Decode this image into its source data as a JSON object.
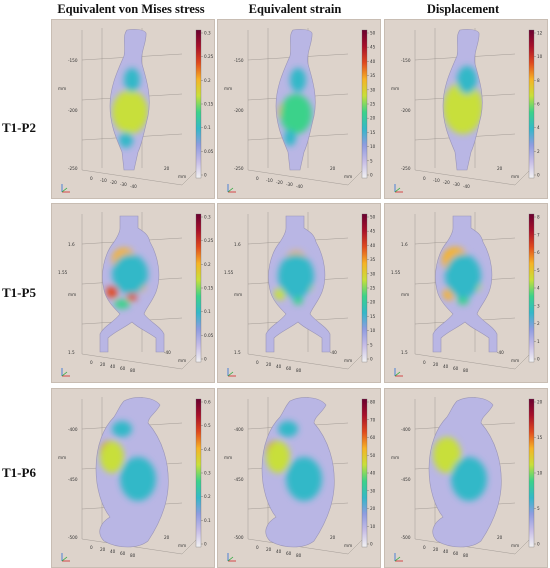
{
  "columns": [
    {
      "title": "Equivalent von Mises stress"
    },
    {
      "title": "Equivalent strain"
    },
    {
      "title": "Displacement"
    }
  ],
  "rows": [
    {
      "label": "T1-P2",
      "shape": "p2",
      "axis_ticks": [
        "-150",
        "-200",
        "mm",
        "-250",
        "0",
        "-10",
        "-20",
        "-30",
        "-40",
        "20",
        "mm"
      ],
      "colorbars": [
        {
          "ticks": [
            "0.3",
            "0.25",
            "0.2",
            "0.15",
            "0.1",
            "0.05",
            "0"
          ]
        },
        {
          "ticks": [
            "50",
            "45",
            "40",
            "35",
            "30",
            "25",
            "20",
            "15",
            "10",
            "5",
            "0"
          ]
        },
        {
          "ticks": [
            "12",
            "10",
            "8",
            "6",
            "4",
            "2",
            "0"
          ]
        }
      ]
    },
    {
      "label": "T1-P5",
      "shape": "p5",
      "axis_ticks": [
        "1.6",
        "mm",
        "1.55",
        "1.5",
        "0",
        "20",
        "40",
        "60",
        "80",
        "-40",
        "mm"
      ],
      "colorbars": [
        {
          "ticks": [
            "0.3",
            "0.25",
            "0.2",
            "0.15",
            "0.1",
            "0.05",
            "0"
          ]
        },
        {
          "ticks": [
            "50",
            "45",
            "40",
            "35",
            "30",
            "25",
            "20",
            "15",
            "10",
            "5",
            "0"
          ]
        },
        {
          "ticks": [
            "8",
            "7",
            "6",
            "5",
            "4",
            "3",
            "2",
            "1",
            "0"
          ]
        }
      ]
    },
    {
      "label": "T1-P6",
      "shape": "p6",
      "axis_ticks": [
        "-400",
        "-450",
        "mm",
        "-500",
        "0",
        "20",
        "40",
        "60",
        "80",
        "20",
        "mm"
      ],
      "colorbars": [
        {
          "ticks": [
            "0.6",
            "0.5",
            "0.4",
            "0.3",
            "0.2",
            "0.1",
            "0"
          ]
        },
        {
          "ticks": [
            "80",
            "70",
            "60",
            "50",
            "40",
            "30",
            "20",
            "10",
            "0"
          ]
        },
        {
          "ticks": [
            "20",
            "15",
            "10",
            "5",
            "0"
          ]
        }
      ]
    }
  ],
  "colors": {
    "panel_bg": "#ddd3cb",
    "colormap": [
      "#f2f2f2",
      "#c7bde6",
      "#8f9ce0",
      "#33b8c8",
      "#3bd28a",
      "#c8df3a",
      "#f6b326",
      "#e04a1e",
      "#a8102a",
      "#6a0030"
    ]
  }
}
